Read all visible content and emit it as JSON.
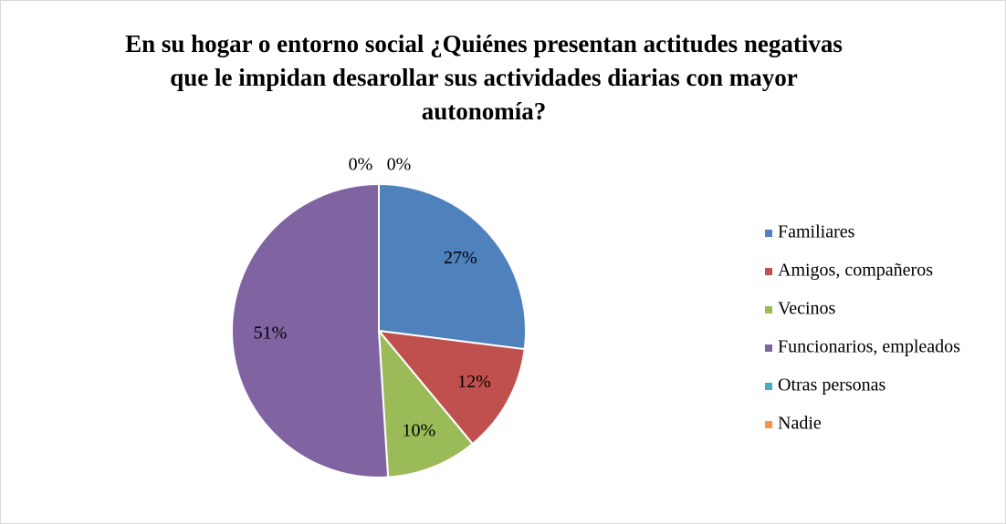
{
  "chart_data": {
    "type": "pie",
    "title": "En su hogar o entorno social ¿Quiénes presentan actitudes negativas que le impidan desarollar sus actividades diarias con mayor autonomía?",
    "categories": [
      "Familiares",
      "Amigos, compañeros",
      "Vecinos",
      "Funcionarios, empleados",
      "Otras personas",
      "Nadie"
    ],
    "values": [
      27,
      12,
      10,
      51,
      0,
      0
    ],
    "value_labels": [
      "27%",
      "12%",
      "10%",
      "51%",
      "0%",
      "0%"
    ],
    "colors": [
      "#4f81bd",
      "#c0504d",
      "#9bbb59",
      "#8064a2",
      "#4bacc6",
      "#f79646"
    ],
    "legend": "right"
  }
}
